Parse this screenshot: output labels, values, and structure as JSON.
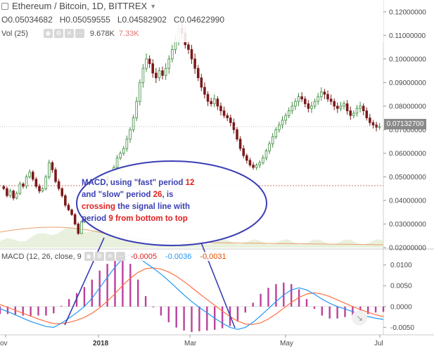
{
  "header": {
    "title": "Ethereum / Bitcoin, 1D, BITTREX",
    "ohlc": [
      {
        "key": "O",
        "value": "0.05034682"
      },
      {
        "key": "H",
        "value": "0.05059555"
      },
      {
        "key": "L",
        "value": "0.04582902"
      },
      {
        "key": "C",
        "value": "0.04622990"
      }
    ],
    "volume_label": "Vol (25)",
    "volume_values": [
      "9.678K",
      "7.33K"
    ]
  },
  "macd": {
    "label": "MACD (12, 26, close, 9",
    "values": [
      "-0.0005",
      "-0.0036",
      "-0.0031"
    ],
    "value_colors": [
      "#e02020",
      "#2196f3",
      "#e65100"
    ]
  },
  "price_axis": {
    "ticks": [
      "0.12000000",
      "0.11000000",
      "0.10000000",
      "0.09000000",
      "0.08000000",
      "0.07000000",
      "0.06000000",
      "0.05000000",
      "0.04000000",
      "0.03000000",
      "0.02000000"
    ],
    "current_price": "0.07132700"
  },
  "macd_axis": {
    "ticks": [
      "0.0100",
      "0.0050",
      "0.0000",
      "-0.0050"
    ]
  },
  "time_axis": {
    "ticks": [
      "ov",
      "2018",
      "Mar",
      "May",
      "Jul"
    ]
  },
  "annotation": {
    "lines": [
      [
        {
          "text": "MACD, using \"fast\" period ",
          "color": "blue"
        },
        {
          "text": "12",
          "color": "red"
        }
      ],
      [
        {
          "text": "and \"slow\" period ",
          "color": "blue"
        },
        {
          "text": "26",
          "color": "red"
        },
        {
          "text": ", is",
          "color": "blue"
        }
      ],
      [
        {
          "text": "crossing ",
          "color": "red"
        },
        {
          "text": "the signal line with",
          "color": "blue"
        }
      ],
      [
        {
          "text": "period ",
          "color": "blue"
        },
        {
          "text": "9",
          "color": "red"
        },
        {
          "text": " from bottom to top",
          "color": "red"
        }
      ]
    ]
  },
  "colors": {
    "up": "#26a69a",
    "down": "#ef5350",
    "candle_up": "#3c8a3c",
    "candle_down": "#7a1a1a",
    "macd_line": "#2196f3",
    "signal_line": "#ff7043",
    "histogram": "#b0208a",
    "annotation_ring": "#3a3fb2"
  },
  "icons": [
    "chevron-down-icon",
    "eye-icon",
    "settings-icon",
    "close-icon",
    "more-icon",
    "go-to-date-icon"
  ],
  "chart_data": {
    "type": "candlestick",
    "price_range": [
      0.02,
      0.125
    ],
    "close_series": [
      0.045,
      0.042,
      0.044,
      0.041,
      0.043,
      0.047,
      0.046,
      0.05,
      0.052,
      0.049,
      0.046,
      0.044,
      0.045,
      0.05,
      0.056,
      0.053,
      0.048,
      0.045,
      0.042,
      0.038,
      0.036,
      0.034,
      0.03,
      0.026,
      0.031,
      0.034,
      0.036,
      0.04,
      0.045,
      0.047,
      0.048,
      0.05,
      0.048,
      0.051,
      0.054,
      0.058,
      0.06,
      0.062,
      0.066,
      0.07,
      0.075,
      0.082,
      0.09,
      0.096,
      0.1,
      0.098,
      0.094,
      0.092,
      0.095,
      0.093,
      0.096,
      0.1,
      0.104,
      0.108,
      0.113,
      0.111,
      0.106,
      0.104,
      0.1,
      0.096,
      0.092,
      0.088,
      0.085,
      0.082,
      0.081,
      0.083,
      0.08,
      0.078,
      0.076,
      0.075,
      0.073,
      0.07,
      0.066,
      0.062,
      0.059,
      0.057,
      0.055,
      0.054,
      0.055,
      0.056,
      0.058,
      0.061,
      0.064,
      0.067,
      0.07,
      0.072,
      0.074,
      0.076,
      0.078,
      0.08,
      0.082,
      0.084,
      0.083,
      0.081,
      0.079,
      0.08,
      0.082,
      0.084,
      0.086,
      0.085,
      0.083,
      0.082,
      0.08,
      0.079,
      0.08,
      0.081,
      0.078,
      0.076,
      0.077,
      0.079,
      0.08,
      0.078,
      0.075,
      0.073,
      0.072,
      0.071,
      0.0713
    ],
    "macd_series": [
      -0.0005,
      -0.0012,
      -0.002,
      -0.0028,
      -0.0036,
      -0.0042,
      -0.0048,
      -0.005,
      -0.004,
      -0.0028,
      -0.0015,
      0.0,
      0.002,
      0.0045,
      0.007,
      0.0095,
      0.0115,
      0.0125,
      0.0118,
      0.0105,
      0.0092,
      0.0078,
      0.0062,
      0.0045,
      0.0028,
      0.0012,
      -0.0002,
      -0.0015,
      -0.0028,
      -0.004,
      -0.005,
      -0.0055,
      -0.005,
      -0.0038,
      -0.0022,
      -0.0005,
      0.0012,
      0.0028,
      0.004,
      0.0045,
      0.004,
      0.003,
      0.0018,
      0.0008,
      0.0,
      -0.0006,
      -0.0012,
      -0.0018,
      -0.0024,
      -0.0028,
      -0.0031
    ],
    "signal_series": [
      0.0005,
      -0.0002,
      -0.0009,
      -0.0016,
      -0.0023,
      -0.003,
      -0.0036,
      -0.0041,
      -0.0041,
      -0.0038,
      -0.0033,
      -0.0026,
      -0.0016,
      -0.0003,
      0.0013,
      0.0031,
      0.0051,
      0.0068,
      0.0082,
      0.0091,
      0.0093,
      0.009,
      0.0083,
      0.0073,
      0.006,
      0.0046,
      0.0031,
      0.0017,
      0.0003,
      -0.0011,
      -0.0024,
      -0.0035,
      -0.0042,
      -0.0043,
      -0.0039,
      -0.003,
      -0.0018,
      -0.0004,
      0.001,
      0.0022,
      0.003,
      0.0033,
      0.003,
      0.0024,
      0.0016,
      0.0008,
      0.0,
      -0.0007,
      -0.0014,
      -0.002,
      -0.0024
    ],
    "macd_range": [
      -0.0068,
      0.0135
    ],
    "price_line": 0.0463,
    "current_price": 0.071327
  }
}
